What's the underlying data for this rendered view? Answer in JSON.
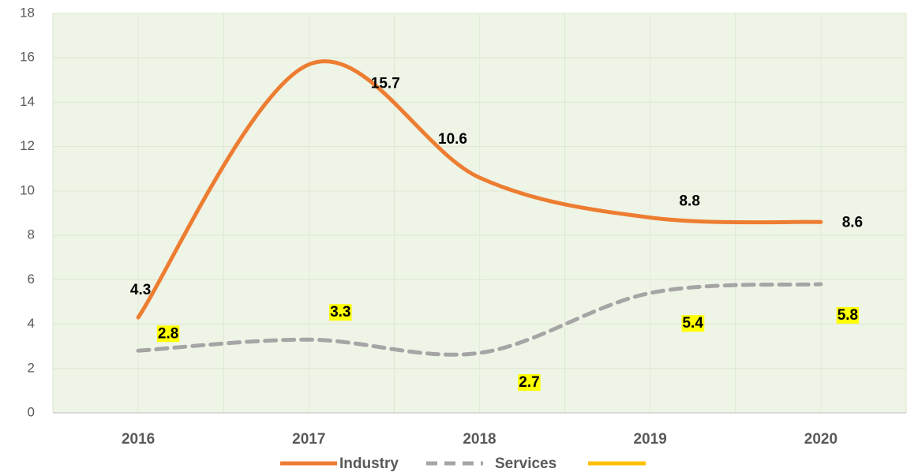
{
  "chart_data": {
    "type": "line",
    "categories": [
      "2016",
      "2017",
      "2018",
      "2019",
      "2020"
    ],
    "series": [
      {
        "name": "Industry",
        "color": "#ed7d31",
        "values": [
          4.3,
          15.7,
          10.6,
          8.8,
          8.6
        ]
      },
      {
        "name": "Services",
        "color": "#a5a5a5",
        "values": [
          2.8,
          3.3,
          2.7,
          5.4,
          5.8
        ]
      }
    ],
    "ylim": [
      0,
      18
    ],
    "yticks": [
      0,
      2,
      4,
      6,
      8,
      10,
      12,
      14,
      16,
      18
    ],
    "grid": true
  }
}
